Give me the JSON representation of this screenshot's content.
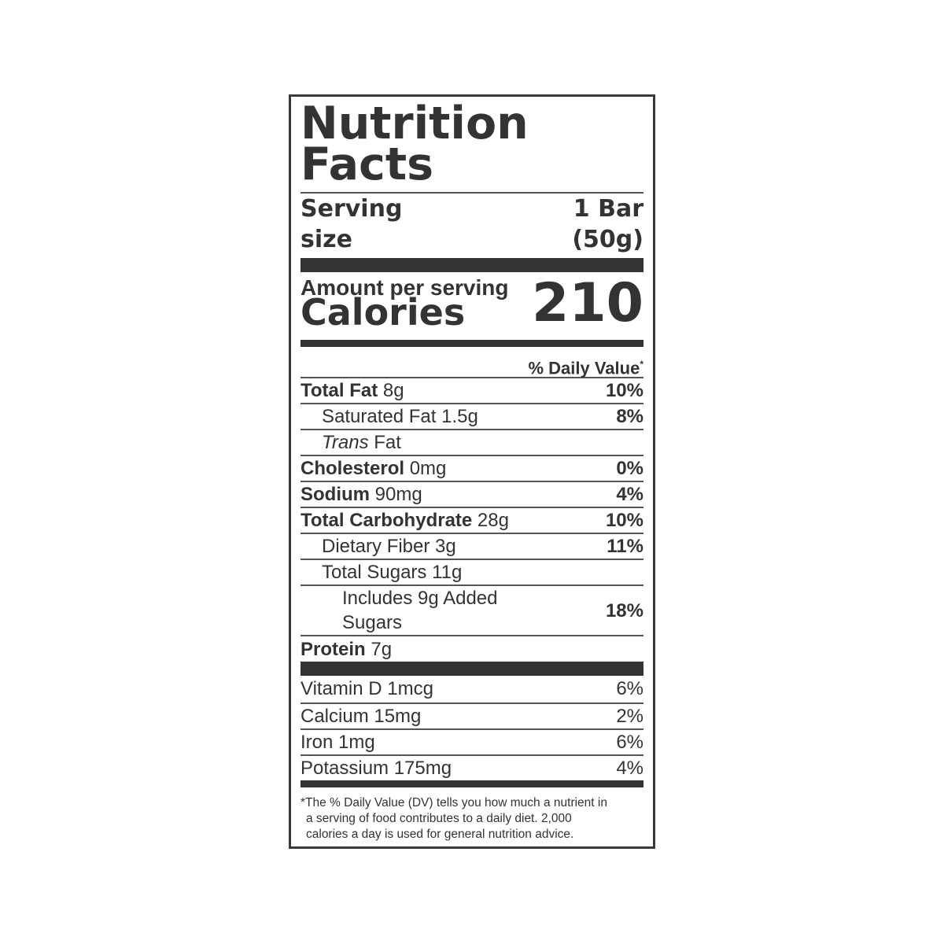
{
  "title_line1": "Nutrition",
  "title_line2": "Facts",
  "serving": {
    "label_line1": "Serving",
    "label_line2": "size",
    "value_line1": "1 Bar",
    "value_line2": "(50g)"
  },
  "calories": {
    "amount_label": "Amount per serving",
    "label": "Calories",
    "value": "210"
  },
  "dv_header": "% Daily Value",
  "dv_asterisk": "*",
  "nutrients": [
    {
      "name": "Total Fat",
      "amount": "8g",
      "dv": "10%"
    },
    {
      "name": "Saturated Fat",
      "amount": "1.5g",
      "dv": "8%"
    },
    {
      "name": "Trans",
      "amount": "Fat",
      "dv": ""
    },
    {
      "name": "Cholesterol",
      "amount": "0mg",
      "dv": "0%"
    },
    {
      "name": "Sodium",
      "amount": "90mg",
      "dv": "4%"
    },
    {
      "name": "Total Carbohydrate",
      "amount": "28g",
      "dv": "10%"
    },
    {
      "name": "Dietary Fiber",
      "amount": "3g",
      "dv": "11%"
    },
    {
      "name": "Total Sugars",
      "amount": "11g",
      "dv": ""
    },
    {
      "name": "Includes 9g Added",
      "amount": "Sugars",
      "dv": "18%"
    },
    {
      "name": "Protein",
      "amount": "7g",
      "dv": ""
    }
  ],
  "vitamins": [
    {
      "name": "Vitamin D 1mcg",
      "dv": "6%"
    },
    {
      "name": "Calcium 15mg",
      "dv": "2%"
    },
    {
      "name": "Iron 1mg",
      "dv": "6%"
    },
    {
      "name": "Potassium 175mg",
      "dv": "4%"
    }
  ],
  "footnote": {
    "line1": "*The % Daily Value (DV) tells you how much a nutrient in",
    "line2": "a serving of food contributes to a daily diet. 2,000",
    "line3": "calories a day is used for general nutrition advice."
  }
}
